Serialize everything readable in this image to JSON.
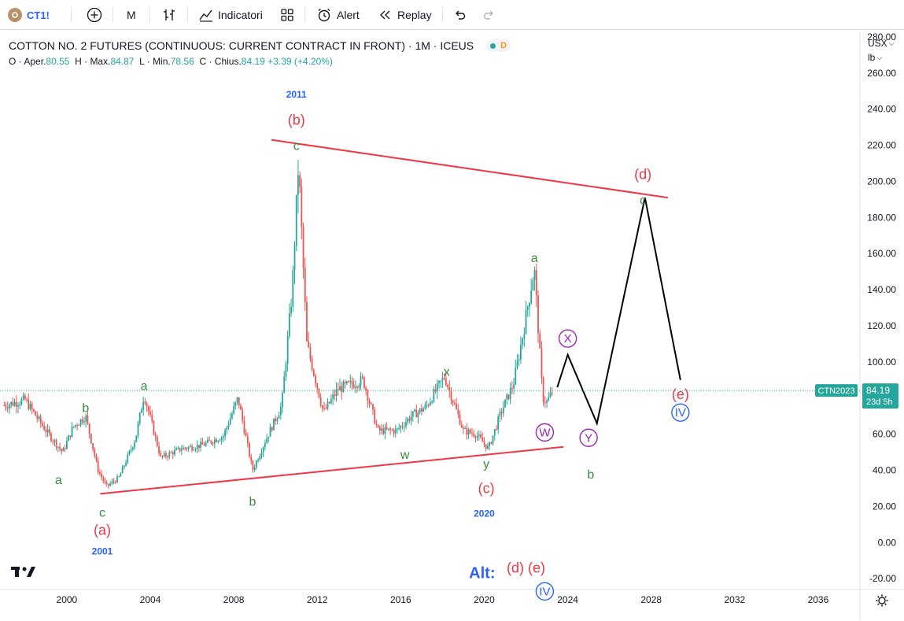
{
  "toolbar": {
    "symbol": "CT1!",
    "interval": "M",
    "indicators_label": "Indicatori",
    "alert_label": "Alert",
    "replay_label": "Replay"
  },
  "legend": {
    "title": "COTTON NO. 2 FUTURES (CONTINUOUS: CURRENT CONTRACT IN FRONT) · 1M · ICEUS",
    "status": "D",
    "open_label": "O",
    "open_text": "Aper.",
    "open": "80.55",
    "high_label": "H",
    "high_text": "Max.",
    "high": "84.87",
    "low_label": "L",
    "low_text": "Min.",
    "low": "78.56",
    "close_label": "C",
    "close_text": "Chius.",
    "close": "84.19",
    "change": "+3.39",
    "change_pct": "(+4.20%)"
  },
  "price_scale": {
    "currency": "USX",
    "unit": "lb"
  },
  "chart_data": {
    "type": "candlestick",
    "x_ticks": [
      "2000",
      "2004",
      "2008",
      "2012",
      "2016",
      "2020",
      "2024",
      "2028",
      "2032",
      "2036"
    ],
    "y_ticks": [
      -20,
      0,
      20,
      40,
      60,
      80,
      100,
      120,
      140,
      160,
      180,
      200,
      220,
      240,
      260,
      280
    ],
    "xlim": [
      1996.8,
      2038.0
    ],
    "ylim": [
      -26,
      283
    ],
    "last_price": {
      "symbol": "CTN2023",
      "value": "84.19",
      "countdown": "23d 5h",
      "price": 84.19
    },
    "price_path": [
      [
        1997.0,
        76
      ],
      [
        1998.0,
        79
      ],
      [
        1999.0,
        62
      ],
      [
        1999.8,
        50
      ],
      [
        2000.3,
        64
      ],
      [
        2000.9,
        70
      ],
      [
        2001.5,
        40
      ],
      [
        2001.9,
        31
      ],
      [
        2002.5,
        36
      ],
      [
        2003.3,
        58
      ],
      [
        2003.7,
        82
      ],
      [
        2004.5,
        47
      ],
      [
        2005.5,
        52
      ],
      [
        2006.5,
        54
      ],
      [
        2007.5,
        59
      ],
      [
        2008.2,
        80
      ],
      [
        2008.9,
        40
      ],
      [
        2009.5,
        56
      ],
      [
        2010.3,
        76
      ],
      [
        2010.8,
        140
      ],
      [
        2011.1,
        210
      ],
      [
        2011.5,
        110
      ],
      [
        2012.3,
        72
      ],
      [
        2013.0,
        85
      ],
      [
        2014.2,
        90
      ],
      [
        2014.9,
        62
      ],
      [
        2015.8,
        62
      ],
      [
        2016.5,
        70
      ],
      [
        2017.2,
        75
      ],
      [
        2018.1,
        92
      ],
      [
        2019.0,
        62
      ],
      [
        2019.6,
        60
      ],
      [
        2020.2,
        52
      ],
      [
        2020.8,
        72
      ],
      [
        2021.4,
        88
      ],
      [
        2021.8,
        112
      ],
      [
        2022.4,
        152
      ],
      [
        2022.8,
        80
      ],
      [
        2023.0,
        78
      ],
      [
        2023.3,
        84
      ]
    ],
    "trendlines": [
      {
        "name": "upper",
        "color": "#f23645",
        "points": [
          [
            2009.8,
            223
          ],
          [
            2028.8,
            191
          ]
        ]
      },
      {
        "name": "lower",
        "color": "#f23645",
        "points": [
          [
            2001.6,
            27
          ],
          [
            2023.8,
            53
          ]
        ]
      }
    ],
    "projection": {
      "color": "#000000",
      "points": [
        [
          2023.5,
          86
        ],
        [
          2024.0,
          104
        ],
        [
          2025.4,
          66
        ],
        [
          2027.7,
          191
        ],
        [
          2029.4,
          90
        ]
      ]
    },
    "annotations": [
      {
        "text": "2011",
        "x": 2011.0,
        "y": 249,
        "color": "#2962ff",
        "style": "year"
      },
      {
        "text": "(b)",
        "x": 2011.0,
        "y": 234,
        "color": "#f23645",
        "style": "red"
      },
      {
        "text": "c",
        "x": 2011.0,
        "y": 220,
        "color": "#388e3c",
        "style": "green"
      },
      {
        "text": "(d)",
        "x": 2027.6,
        "y": 204,
        "color": "#f23645",
        "style": "red"
      },
      {
        "text": "c",
        "x": 2027.6,
        "y": 190,
        "color": "#388e3c",
        "style": "green"
      },
      {
        "text": "a",
        "x": 2022.4,
        "y": 158,
        "color": "#388e3c",
        "style": "green"
      },
      {
        "text": "X",
        "x": 2024.0,
        "y": 113,
        "color": "#9c27b0",
        "style": "circle"
      },
      {
        "text": "x",
        "x": 2018.2,
        "y": 95,
        "color": "#388e3c",
        "style": "green"
      },
      {
        "text": "a",
        "x": 2003.7,
        "y": 87,
        "color": "#388e3c",
        "style": "green"
      },
      {
        "text": "b",
        "x": 2000.9,
        "y": 75,
        "color": "#388e3c",
        "style": "green"
      },
      {
        "text": "a",
        "x": 1999.6,
        "y": 35,
        "color": "#388e3c",
        "style": "green"
      },
      {
        "text": "(e)",
        "x": 2029.4,
        "y": 82,
        "color": "#f23645",
        "style": "red"
      },
      {
        "text": "IV",
        "x": 2029.4,
        "y": 72,
        "color": "#2962ff",
        "style": "circle"
      },
      {
        "text": "W",
        "x": 2022.9,
        "y": 61,
        "color": "#9c27b0",
        "style": "circle"
      },
      {
        "text": "Y",
        "x": 2025.0,
        "y": 58,
        "color": "#9c27b0",
        "style": "circle"
      },
      {
        "text": "w",
        "x": 2016.2,
        "y": 49,
        "color": "#388e3c",
        "style": "green"
      },
      {
        "text": "y",
        "x": 2020.1,
        "y": 44,
        "color": "#388e3c",
        "style": "green"
      },
      {
        "text": "b",
        "x": 2025.1,
        "y": 38,
        "color": "#388e3c",
        "style": "green"
      },
      {
        "text": "b",
        "x": 2008.9,
        "y": 23,
        "color": "#388e3c",
        "style": "green"
      },
      {
        "text": "(c)",
        "x": 2020.1,
        "y": 30,
        "color": "#f23645",
        "style": "red"
      },
      {
        "text": "c",
        "x": 2001.7,
        "y": 17,
        "color": "#388e3c",
        "style": "green"
      },
      {
        "text": "(a)",
        "x": 2001.7,
        "y": 7,
        "color": "#f23645",
        "style": "red"
      },
      {
        "text": "2020",
        "x": 2020.0,
        "y": 17,
        "color": "#2962ff",
        "style": "year"
      },
      {
        "text": "2001",
        "x": 2001.7,
        "y": -4,
        "color": "#2962ff",
        "style": "year"
      },
      {
        "text": "Alt:",
        "x": 2019.9,
        "y": -17,
        "color": "#2962ff",
        "style": "alt"
      },
      {
        "text": "(d) (e)",
        "x": 2022.0,
        "y": -14,
        "color": "#f23645",
        "style": "red"
      },
      {
        "text": "IV",
        "x": 2022.9,
        "y": -27,
        "color": "#2962ff",
        "style": "circle"
      }
    ]
  }
}
